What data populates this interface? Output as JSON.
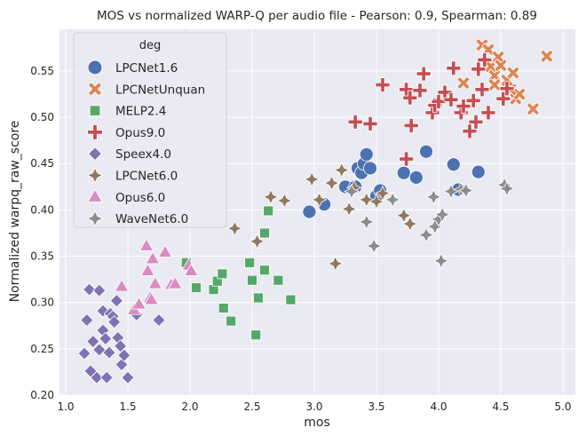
{
  "chart_data": {
    "type": "scatter",
    "title": "MOS vs normalized WARP-Q per audio file - Pearson: 0.9, Spearman: 0.89",
    "xlabel": "mos",
    "ylabel": "Normalized warpq_raw_score",
    "xlim": [
      0.95,
      5.1
    ],
    "ylim": [
      0.2,
      0.595
    ],
    "xticks": [
      "1.0",
      "1.5",
      "2.0",
      "2.5",
      "3.0",
      "3.5",
      "4.0",
      "4.5",
      "5.0"
    ],
    "yticks": [
      "0.20",
      "0.25",
      "0.30",
      "0.35",
      "0.40",
      "0.45",
      "0.50",
      "0.55"
    ],
    "grid": true,
    "legend_title": "deg",
    "legend_position": "top-left",
    "series": [
      {
        "name": "LPCNet1.6",
        "marker": "circle",
        "color": "#4c72b0",
        "points": [
          [
            2.96,
            0.398
          ],
          [
            3.08,
            0.406
          ],
          [
            3.25,
            0.425
          ],
          [
            3.33,
            0.425
          ],
          [
            3.35,
            0.445
          ],
          [
            3.38,
            0.44
          ],
          [
            3.4,
            0.45
          ],
          [
            3.42,
            0.46
          ],
          [
            3.45,
            0.445
          ],
          [
            3.5,
            0.415
          ],
          [
            3.53,
            0.421
          ],
          [
            3.72,
            0.44
          ],
          [
            3.82,
            0.435
          ],
          [
            3.9,
            0.463
          ],
          [
            4.12,
            0.449
          ],
          [
            4.16,
            0.422
          ],
          [
            4.32,
            0.441
          ]
        ]
      },
      {
        "name": "LPCNetUnquan",
        "marker": "x",
        "color": "#dd8452",
        "points": [
          [
            4.35,
            0.578
          ],
          [
            4.4,
            0.573
          ],
          [
            4.42,
            0.555
          ],
          [
            4.45,
            0.545
          ],
          [
            4.48,
            0.565
          ],
          [
            4.5,
            0.556
          ],
          [
            4.55,
            0.54
          ],
          [
            4.6,
            0.548
          ],
          [
            4.62,
            0.52
          ],
          [
            4.65,
            0.525
          ],
          [
            4.58,
            0.53
          ],
          [
            4.45,
            0.535
          ],
          [
            4.76,
            0.509
          ],
          [
            4.87,
            0.566
          ],
          [
            4.2,
            0.537
          ]
        ]
      },
      {
        "name": "MELP2.4",
        "marker": "square",
        "color": "#55a868",
        "points": [
          [
            1.97,
            0.343
          ],
          [
            2.05,
            0.316
          ],
          [
            2.19,
            0.314
          ],
          [
            2.22,
            0.323
          ],
          [
            2.26,
            0.331
          ],
          [
            2.27,
            0.294
          ],
          [
            2.33,
            0.28
          ],
          [
            2.48,
            0.343
          ],
          [
            2.5,
            0.324
          ],
          [
            2.53,
            0.265
          ],
          [
            2.55,
            0.305
          ],
          [
            2.6,
            0.335
          ],
          [
            2.6,
            0.375
          ],
          [
            2.63,
            0.399
          ],
          [
            2.71,
            0.324
          ],
          [
            2.81,
            0.303
          ]
        ]
      },
      {
        "name": "Opus9.0",
        "marker": "plus",
        "color": "#c44e52",
        "points": [
          [
            3.55,
            0.535
          ],
          [
            3.74,
            0.53
          ],
          [
            3.74,
            0.455
          ],
          [
            3.77,
            0.521
          ],
          [
            3.78,
            0.491
          ],
          [
            3.85,
            0.529
          ],
          [
            3.88,
            0.547
          ],
          [
            3.95,
            0.505
          ],
          [
            3.97,
            0.513
          ],
          [
            4.0,
            0.517
          ],
          [
            4.05,
            0.527
          ],
          [
            4.1,
            0.519
          ],
          [
            4.12,
            0.553
          ],
          [
            4.18,
            0.505
          ],
          [
            4.2,
            0.512
          ],
          [
            4.25,
            0.485
          ],
          [
            4.28,
            0.518
          ],
          [
            4.3,
            0.495
          ],
          [
            4.32,
            0.552
          ],
          [
            4.35,
            0.53
          ],
          [
            4.37,
            0.562
          ],
          [
            4.4,
            0.505
          ],
          [
            4.52,
            0.52
          ],
          [
            4.55,
            0.531
          ],
          [
            3.33,
            0.495
          ],
          [
            3.45,
            0.493
          ]
        ]
      },
      {
        "name": "Speex4.0",
        "marker": "diamond",
        "color": "#8172b3",
        "points": [
          [
            1.15,
            0.245
          ],
          [
            1.17,
            0.281
          ],
          [
            1.19,
            0.314
          ],
          [
            1.2,
            0.226
          ],
          [
            1.22,
            0.258
          ],
          [
            1.25,
            0.219
          ],
          [
            1.27,
            0.313
          ],
          [
            1.27,
            0.249
          ],
          [
            1.3,
            0.27
          ],
          [
            1.3,
            0.291
          ],
          [
            1.32,
            0.261
          ],
          [
            1.33,
            0.219
          ],
          [
            1.35,
            0.246
          ],
          [
            1.36,
            0.288
          ],
          [
            1.38,
            0.285
          ],
          [
            1.39,
            0.279
          ],
          [
            1.41,
            0.302
          ],
          [
            1.42,
            0.262
          ],
          [
            1.44,
            0.253
          ],
          [
            1.45,
            0.233
          ],
          [
            1.47,
            0.243
          ],
          [
            1.5,
            0.219
          ],
          [
            1.57,
            0.287
          ],
          [
            1.75,
            0.281
          ]
        ]
      },
      {
        "name": "LPCNet6.0",
        "marker": "star4",
        "color": "#937860",
        "points": [
          [
            2.36,
            0.38
          ],
          [
            2.54,
            0.366
          ],
          [
            2.65,
            0.414
          ],
          [
            2.76,
            0.41
          ],
          [
            2.98,
            0.433
          ],
          [
            3.04,
            0.411
          ],
          [
            3.14,
            0.429
          ],
          [
            3.17,
            0.342
          ],
          [
            3.22,
            0.443
          ],
          [
            3.28,
            0.401
          ],
          [
            3.32,
            0.424
          ],
          [
            3.42,
            0.411
          ],
          [
            3.5,
            0.409
          ],
          [
            3.55,
            0.418
          ],
          [
            3.72,
            0.394
          ],
          [
            3.77,
            0.385
          ]
        ]
      },
      {
        "name": "Opus6.0",
        "marker": "triangle",
        "color": "#da8bc3",
        "points": [
          [
            1.45,
            0.317
          ],
          [
            1.55,
            0.292
          ],
          [
            1.59,
            0.298
          ],
          [
            1.65,
            0.361
          ],
          [
            1.66,
            0.334
          ],
          [
            1.68,
            0.305
          ],
          [
            1.69,
            0.303
          ],
          [
            1.7,
            0.347
          ],
          [
            1.72,
            0.32
          ],
          [
            1.8,
            0.354
          ],
          [
            1.85,
            0.319
          ],
          [
            1.88,
            0.32
          ],
          [
            1.99,
            0.34
          ],
          [
            2.01,
            0.334
          ]
        ]
      },
      {
        "name": "WaveNet6.0",
        "marker": "star4",
        "color": "#8c8c8c",
        "points": [
          [
            3.3,
            0.42
          ],
          [
            3.42,
            0.387
          ],
          [
            3.48,
            0.361
          ],
          [
            3.63,
            0.411
          ],
          [
            3.9,
            0.373
          ],
          [
            3.96,
            0.414
          ],
          [
            3.97,
            0.382
          ],
          [
            4.0,
            0.39
          ],
          [
            4.02,
            0.345
          ],
          [
            4.03,
            0.395
          ],
          [
            4.1,
            0.42
          ],
          [
            4.18,
            0.422
          ],
          [
            4.22,
            0.421
          ],
          [
            4.53,
            0.427
          ],
          [
            4.55,
            0.423
          ]
        ]
      }
    ]
  }
}
